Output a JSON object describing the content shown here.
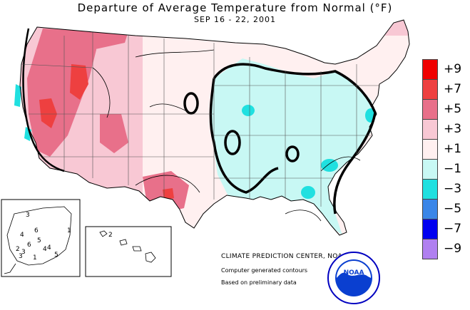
{
  "title": "Departure of Average Temperature from Normal (°F)",
  "date_range": "SEP 16 - 22, 2001",
  "legend": {
    "items": [
      {
        "label": "+9",
        "color": "#f00000"
      },
      {
        "label": "+7",
        "color": "#ee4040"
      },
      {
        "label": "+5",
        "color": "#e8708a"
      },
      {
        "label": "+3",
        "color": "#f8c8d4"
      },
      {
        "label": "+1",
        "color": "#fff0f0"
      },
      {
        "label": "−1",
        "color": "#c8f8f4"
      },
      {
        "label": "−3",
        "color": "#20e0e0"
      },
      {
        "label": "−5",
        "color": "#3a86e8"
      },
      {
        "label": "−7",
        "color": "#0000f0"
      },
      {
        "label": "−9",
        "color": "#b080f0"
      }
    ]
  },
  "credits": {
    "line1": "CLIMATE PREDICTION CENTER, NOAA",
    "line2": "Computer generated contours",
    "line3": "Based on preliminary data"
  },
  "logo": {
    "text": "NOAA",
    "icon": "noaa-seagull-logo"
  },
  "insets": {
    "alaska_values": [
      "3",
      "1",
      "4",
      "6",
      "5",
      "6",
      "3",
      "4",
      "5",
      "4",
      "3",
      "2",
      "1"
    ],
    "hawaii_values": [
      "2"
    ]
  }
}
